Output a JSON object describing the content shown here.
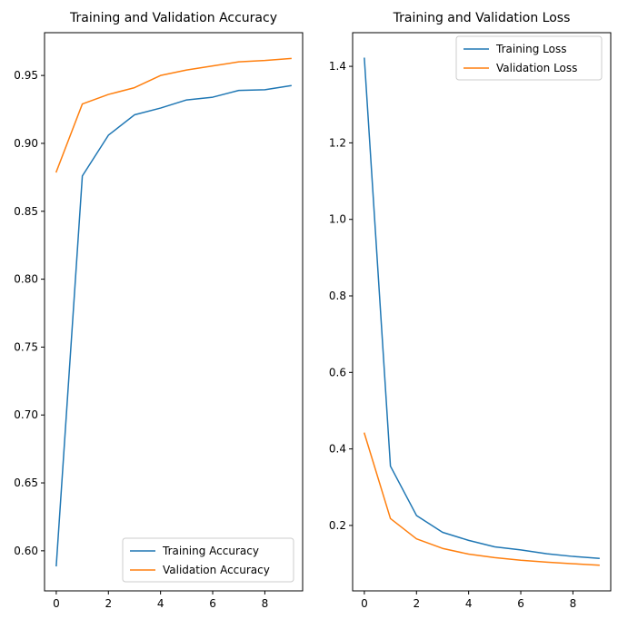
{
  "chart_data": [
    {
      "type": "line",
      "title": "Training and Validation Accuracy",
      "xlabel": "",
      "ylabel": "",
      "x": [
        0,
        1,
        2,
        3,
        4,
        5,
        6,
        7,
        8,
        9
      ],
      "xlim": [
        -0.45,
        9.45
      ],
      "ylim": [
        0.5705,
        0.9815
      ],
      "xticks": [
        0,
        2,
        4,
        6,
        8
      ],
      "yticks": [
        0.6,
        0.65,
        0.7,
        0.75,
        0.8,
        0.85,
        0.9,
        0.95
      ],
      "ytick_labels": [
        "0.60",
        "0.65",
        "0.70",
        "0.75",
        "0.80",
        "0.85",
        "0.90",
        "0.95"
      ],
      "grid": false,
      "legend_position": "lower-right",
      "series": [
        {
          "name": "Training Accuracy",
          "color": "#1f77b4",
          "values": [
            0.589,
            0.876,
            0.906,
            0.921,
            0.926,
            0.932,
            0.934,
            0.939,
            0.9395,
            0.9425
          ]
        },
        {
          "name": "Validation Accuracy",
          "color": "#ff7f0e",
          "values": [
            0.879,
            0.929,
            0.936,
            0.941,
            0.95,
            0.954,
            0.957,
            0.96,
            0.961,
            0.9625
          ]
        }
      ]
    },
    {
      "type": "line",
      "title": "Training and Validation Loss",
      "xlabel": "",
      "ylabel": "",
      "x": [
        0,
        1,
        2,
        3,
        4,
        5,
        6,
        7,
        8,
        9
      ],
      "xlim": [
        -0.45,
        9.45
      ],
      "ylim": [
        0.029,
        1.488
      ],
      "xticks": [
        0,
        2,
        4,
        6,
        8
      ],
      "yticks": [
        0.2,
        0.4,
        0.6,
        0.8,
        1.0,
        1.2,
        1.4
      ],
      "ytick_labels": [
        "0.2",
        "0.4",
        "0.6",
        "0.8",
        "1.0",
        "1.2",
        "1.4"
      ],
      "grid": false,
      "legend_position": "upper-right",
      "series": [
        {
          "name": "Training Loss",
          "color": "#1f77b4",
          "values": [
            1.421,
            0.355,
            0.226,
            0.182,
            0.161,
            0.144,
            0.136,
            0.126,
            0.119,
            0.114
          ]
        },
        {
          "name": "Validation Loss",
          "color": "#ff7f0e",
          "values": [
            0.441,
            0.218,
            0.165,
            0.14,
            0.125,
            0.116,
            0.109,
            0.104,
            0.1,
            0.096
          ]
        }
      ]
    }
  ]
}
